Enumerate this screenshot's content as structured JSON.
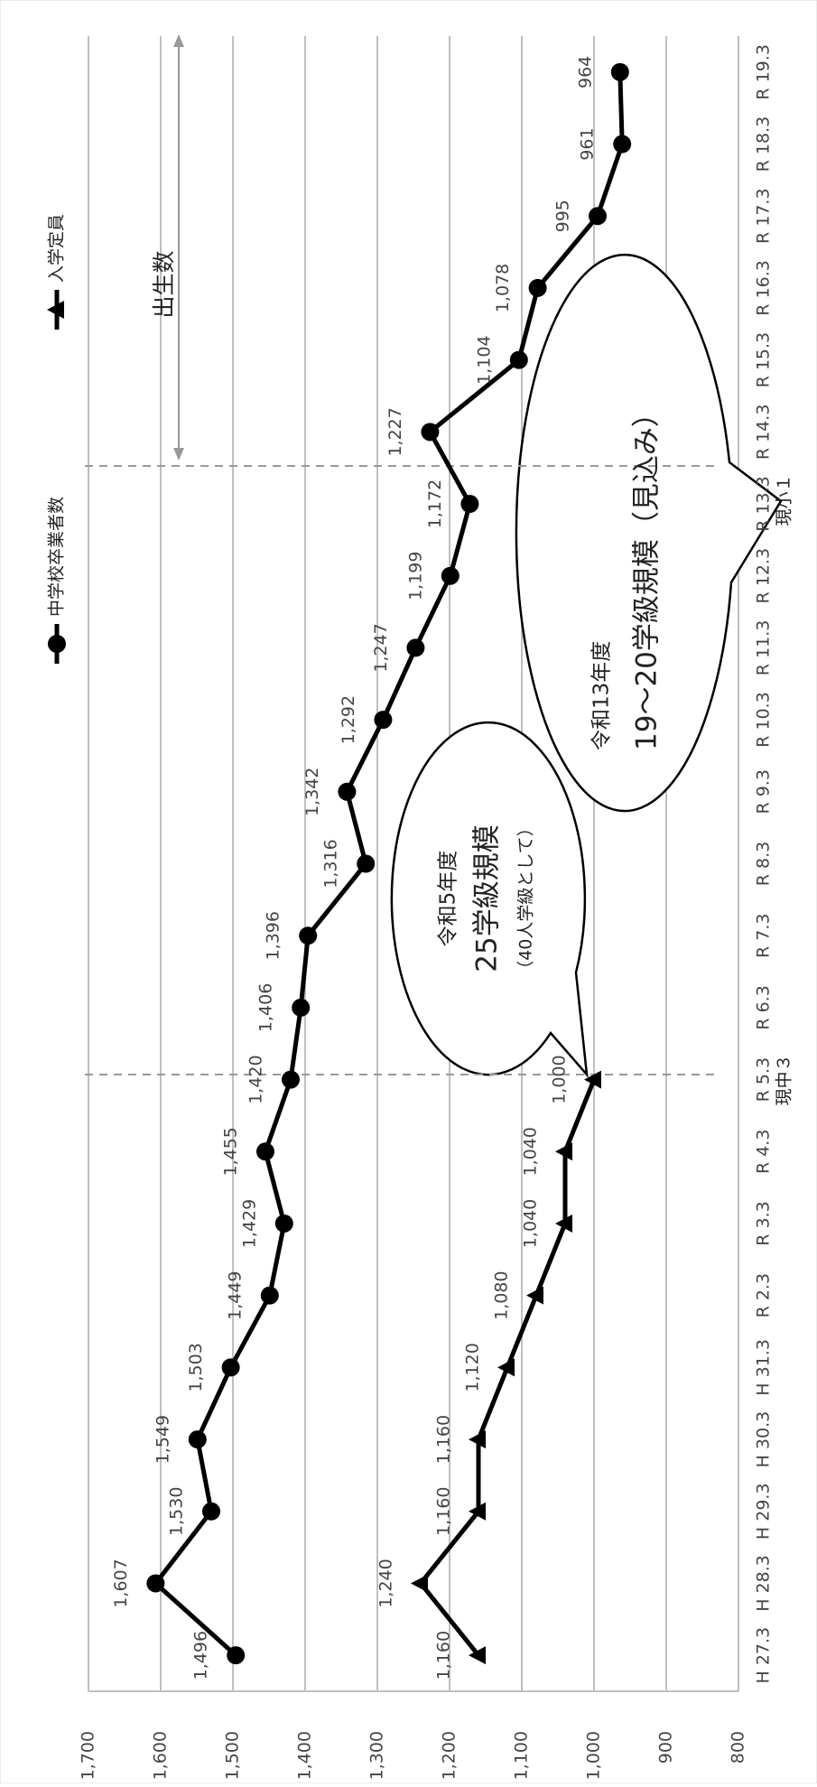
{
  "chart_data": {
    "type": "line",
    "categories": [
      "H 27.3",
      "H 28.3",
      "H 29.3",
      "H 30.3",
      "H 31.3",
      "R 2.3",
      "R 3.3",
      "R 4.3",
      "R 5.3",
      "R 6.3",
      "R 7.3",
      "R 8.3",
      "R 9.3",
      "R 10.3",
      "R 11.3",
      "R 12.3",
      "R 13.3",
      "R 14.3",
      "R 15.3",
      "R 16.3",
      "R 17.3",
      "R 18.3",
      "R 19.3"
    ],
    "series": [
      {
        "name": "中学校卒業者数",
        "color": "#000000",
        "marker": "circle",
        "values": [
          1496,
          1607,
          1530,
          1549,
          1503,
          1449,
          1429,
          1455,
          1420,
          1406,
          1396,
          1316,
          1342,
          1292,
          1247,
          1199,
          1172,
          1227,
          1104,
          1078,
          995,
          961,
          964
        ],
        "value_labels": [
          "1,496",
          "1,607",
          "1,530",
          "1,549",
          "1,503",
          "1,449",
          "1,429",
          "1,455",
          "1,420",
          "1,406",
          "1,396",
          "1,316",
          "1,342",
          "1,292",
          "1,247",
          "1,199",
          "1,172",
          "1,227",
          "1,104",
          "1,078",
          "995",
          "961",
          "964"
        ]
      },
      {
        "name": "入学定員",
        "color": "#000000",
        "marker": "triangle",
        "values": [
          1160,
          1240,
          1160,
          1160,
          1120,
          1080,
          1040,
          1040,
          1000,
          null,
          null,
          null,
          null,
          null,
          null,
          null,
          null,
          null,
          null,
          null,
          null,
          null,
          null
        ],
        "value_labels": [
          "1,160",
          "1,240",
          "1,160",
          "1,160",
          "1,120",
          "1,080",
          "1,040",
          "1,040",
          "1,000",
          null,
          null,
          null,
          null,
          null,
          null,
          null,
          null,
          null,
          null,
          null,
          null,
          null,
          null
        ]
      }
    ],
    "ylim": [
      800,
      1700
    ],
    "yticks": [
      {
        "value": 800,
        "label": "800"
      },
      {
        "value": 900,
        "label": "900"
      },
      {
        "value": 1000,
        "label": "1,000"
      },
      {
        "value": 1100,
        "label": "1,100"
      },
      {
        "value": 1200,
        "label": "1,200"
      },
      {
        "value": 1300,
        "label": "1,300"
      },
      {
        "value": 1400,
        "label": "1,400"
      },
      {
        "value": 1500,
        "label": "1,500"
      },
      {
        "value": 1600,
        "label": "1,600"
      },
      {
        "value": 1700,
        "label": "1,700"
      }
    ],
    "grid": true,
    "legend": "top",
    "annotations": [
      "出生数",
      "令和5年度",
      "25学級規模",
      "（40人学級として）",
      "令和13年度",
      "19〜20学級規模（見込み）",
      "現中３",
      "現小１"
    ]
  }
}
